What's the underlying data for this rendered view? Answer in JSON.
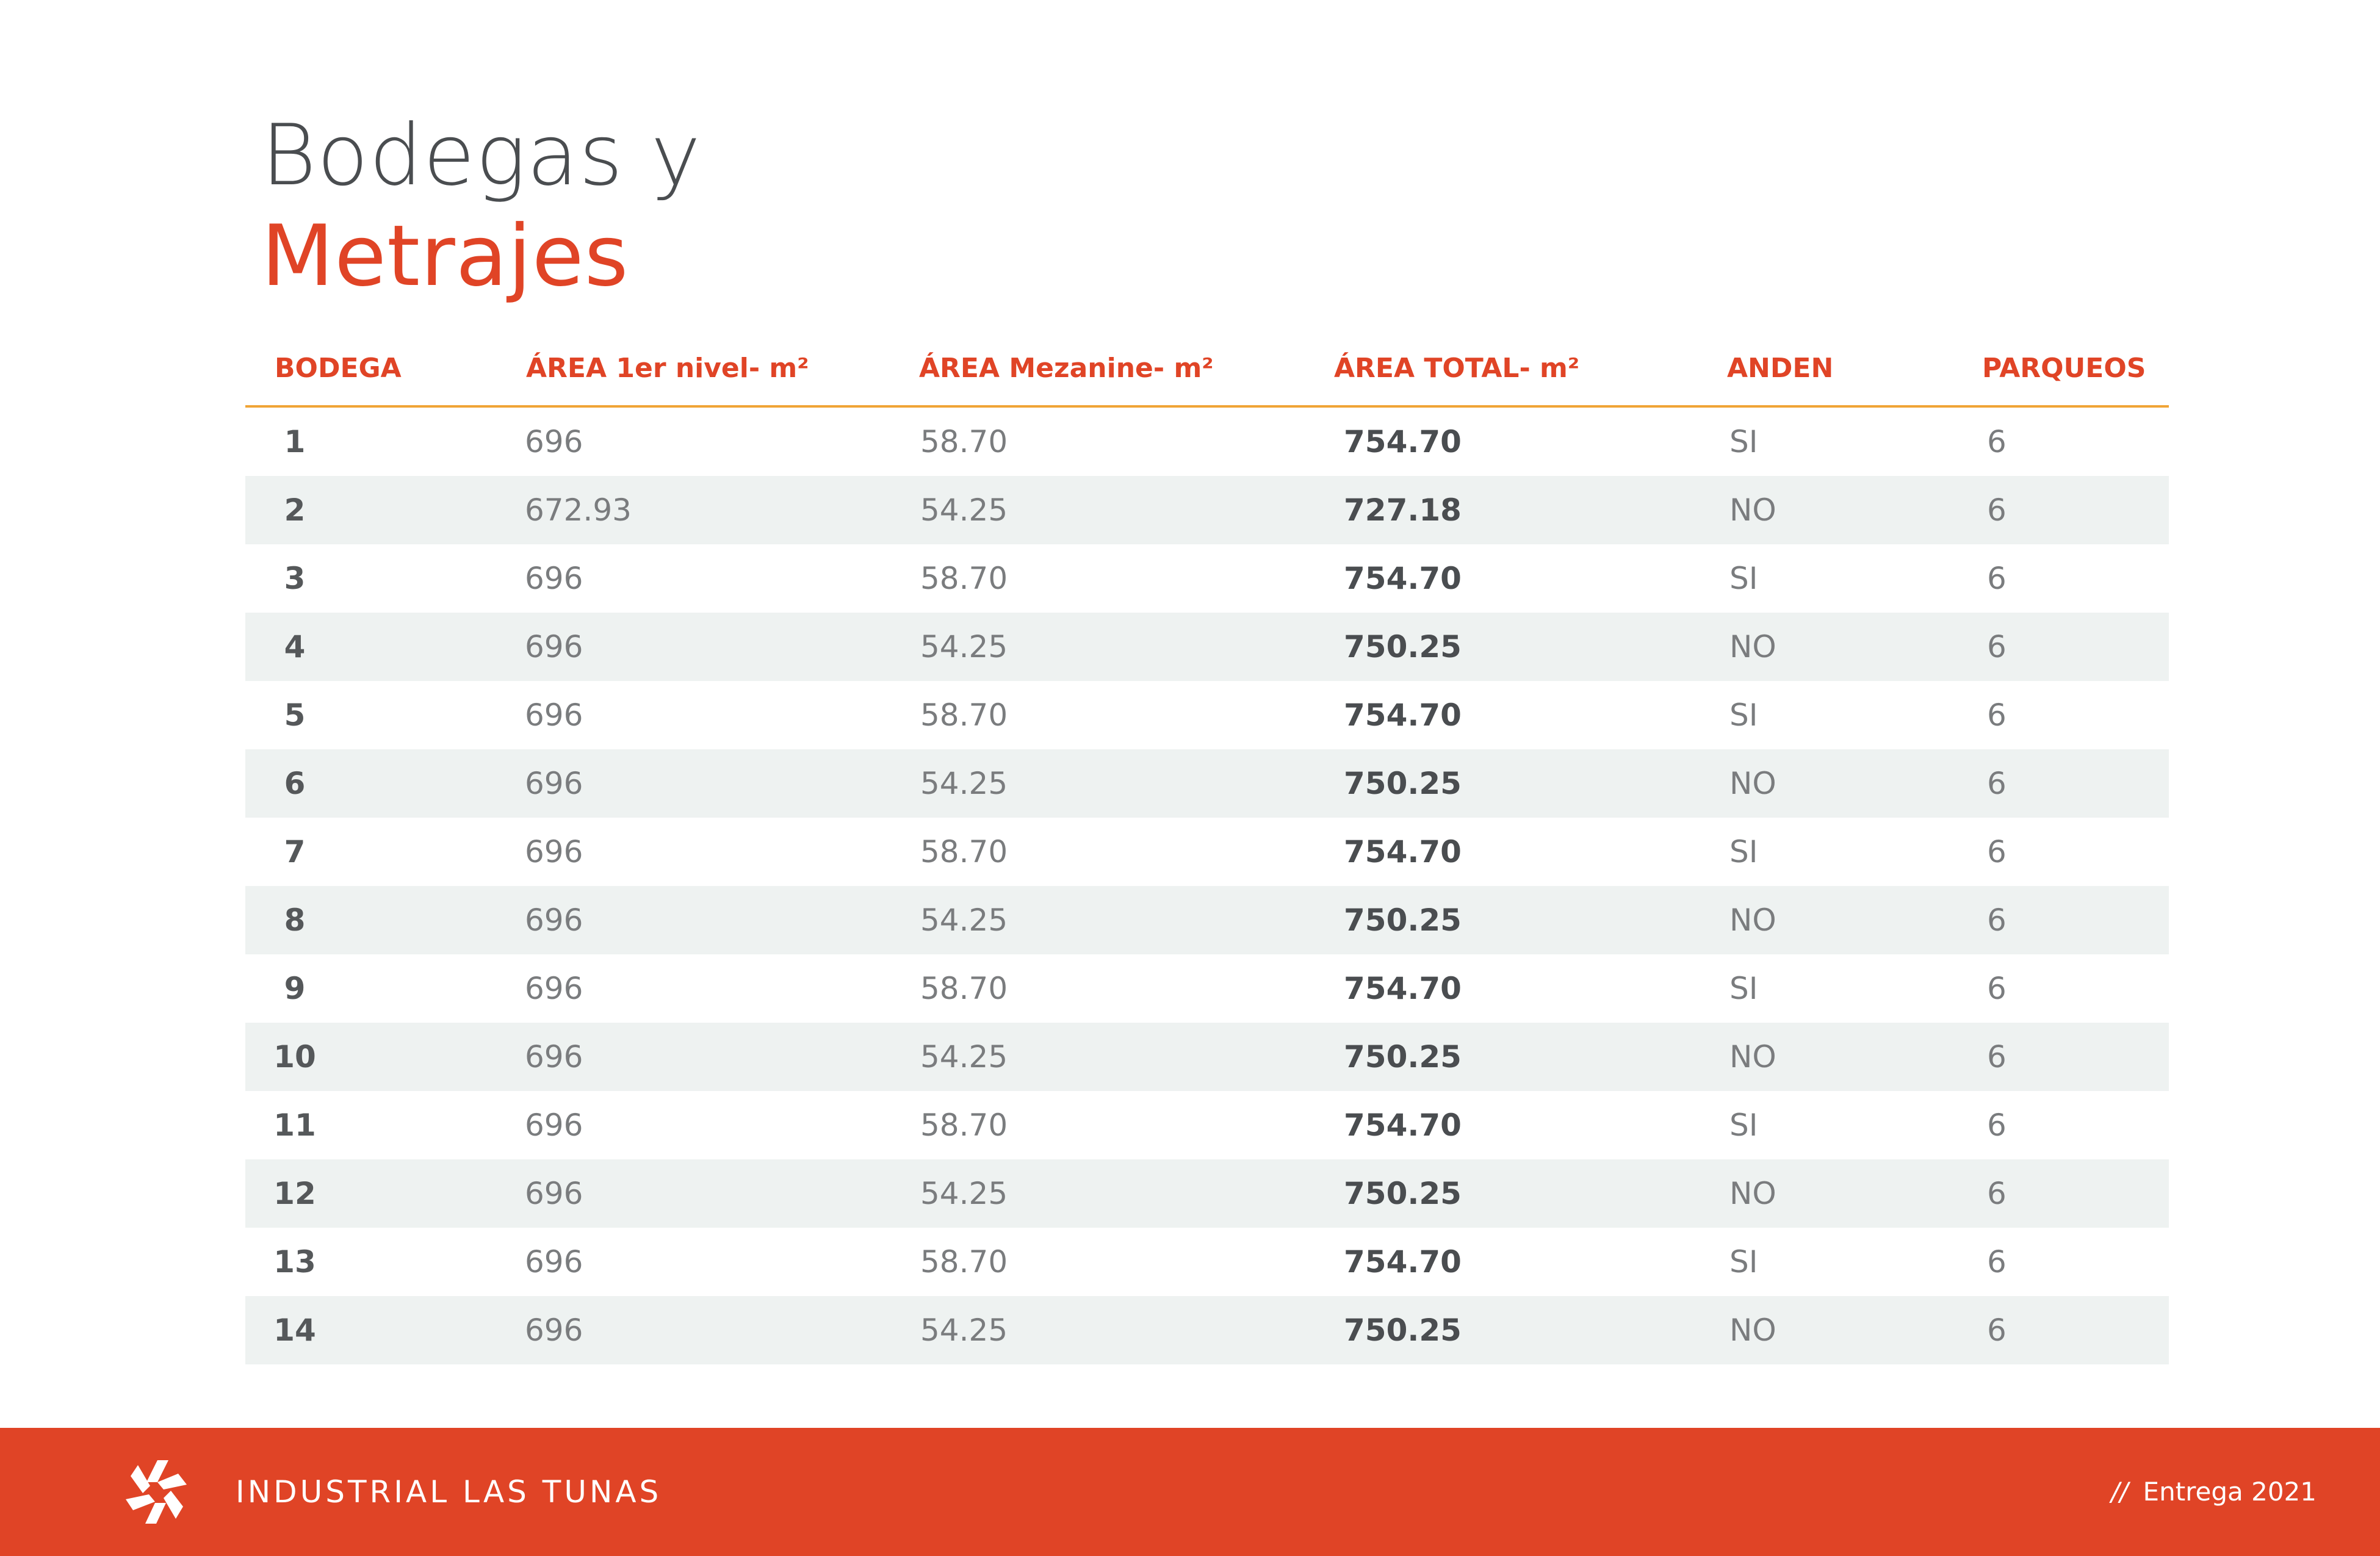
{
  "title": {
    "line1": "Bodegas y",
    "line2": "Metrajes"
  },
  "table": {
    "headers": [
      "BODEGA",
      "ÁREA 1er nivel- m²",
      "ÁREA Mezanine- m²",
      "ÁREA TOTAL- m²",
      "ANDEN",
      "PARQUEOS"
    ],
    "rows": [
      [
        "1",
        "696",
        "58.70",
        "754.70",
        "SI",
        "6"
      ],
      [
        "2",
        "672.93",
        "54.25",
        "727.18",
        "NO",
        "6"
      ],
      [
        "3",
        "696",
        "58.70",
        "754.70",
        "SI",
        "6"
      ],
      [
        "4",
        "696",
        "54.25",
        "750.25",
        "NO",
        "6"
      ],
      [
        "5",
        "696",
        "58.70",
        "754.70",
        "SI",
        "6"
      ],
      [
        "6",
        "696",
        "54.25",
        "750.25",
        "NO",
        "6"
      ],
      [
        "7",
        "696",
        "58.70",
        "754.70",
        "SI",
        "6"
      ],
      [
        "8",
        "696",
        "54.25",
        "750.25",
        "NO",
        "6"
      ],
      [
        "9",
        "696",
        "58.70",
        "754.70",
        "SI",
        "6"
      ],
      [
        "10",
        "696",
        "54.25",
        "750.25",
        "NO",
        "6"
      ],
      [
        "11",
        "696",
        "58.70",
        "754.70",
        "SI",
        "6"
      ],
      [
        "12",
        "696",
        "54.25",
        "750.25",
        "NO",
        "6"
      ],
      [
        "13",
        "696",
        "58.70",
        "754.70",
        "SI",
        "6"
      ],
      [
        "14",
        "696",
        "54.25",
        "750.25",
        "NO",
        "6"
      ]
    ]
  },
  "footer": {
    "brand": "INDUSTRIAL LAS TUNAS",
    "separator": "//",
    "delivery": "Entrega 2021",
    "logo_icon": "pinwheel-logo-icon"
  },
  "colors": {
    "accent": "#e04426",
    "header_rule": "#f0a436",
    "row_shade": "#eef2f1",
    "title_dark": "#4a4d50"
  }
}
